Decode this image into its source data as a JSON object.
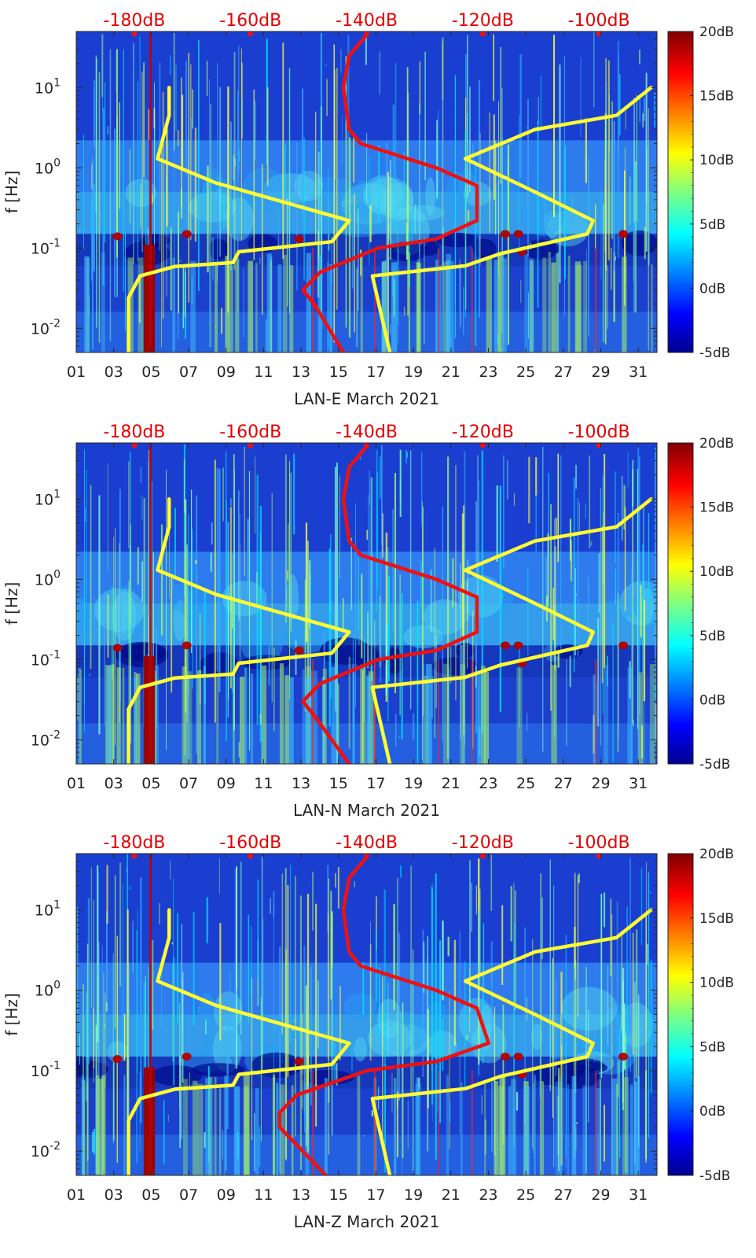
{
  "chart_data": [
    {
      "type": "heatmap",
      "title": "",
      "xlabel": "LAN-E March 2021",
      "ylabel": "f [Hz]",
      "x_ticks": [
        "01",
        "03",
        "05",
        "07",
        "09",
        "11",
        "13",
        "15",
        "17",
        "19",
        "21",
        "23",
        "25",
        "27",
        "29",
        "31"
      ],
      "x_range_days": [
        1,
        32
      ],
      "y_scale": "log",
      "y_range_hz": [
        0.005,
        50
      ],
      "y_ticks": [
        {
          "base": "10",
          "exp": "1"
        },
        {
          "base": "10",
          "exp": "0"
        },
        {
          "base": "10",
          "exp": "-1"
        },
        {
          "base": "10",
          "exp": "-2"
        }
      ],
      "top_axis_labels": [
        "-180dB",
        "-160dB",
        "-140dB",
        "-120dB",
        "-100dB"
      ],
      "colorbar_labels": [
        "20dB",
        "15dB",
        "10dB",
        "5dB",
        "0dB",
        "-5dB"
      ],
      "colorbar_range_db": [
        -5,
        20
      ],
      "overlay_curves": [
        {
          "name": "low noise model",
          "color": "#ffff33",
          "x_db": [
            -174,
            -174,
            -176,
            -166,
            -143,
            -146,
            -162,
            -163,
            -173,
            -179,
            -181,
            -181
          ],
          "f_hz": [
            10,
            4.5,
            1.3,
            0.65,
            0.22,
            0.12,
            0.09,
            0.066,
            0.059,
            0.045,
            0.024,
            0.005
          ]
        },
        {
          "name": "high noise model",
          "color": "#ffff33",
          "x_db": [
            -91,
            -97,
            -111,
            -123,
            -111,
            -101,
            -102,
            -117,
            -123,
            -139,
            -136
          ],
          "f_hz": [
            10,
            4.5,
            3,
            1.3,
            0.5,
            0.22,
            0.15,
            0.085,
            0.06,
            0.045,
            0.005
          ]
        },
        {
          "name": "PSD median",
          "color": "#ee1111",
          "x_db": [
            -140,
            -143,
            -144,
            -143,
            -141,
            -128,
            -121,
            -121,
            -128,
            -138,
            -148,
            -151,
            -149,
            -144
          ],
          "f_hz": [
            45,
            25,
            10,
            3,
            2,
            1,
            0.6,
            0.22,
            0.13,
            0.1,
            0.05,
            0.03,
            0.02,
            0.005
          ]
        }
      ]
    },
    {
      "type": "heatmap",
      "title": "",
      "xlabel": "LAN-N March 2021",
      "ylabel": "f [Hz]",
      "x_ticks": [
        "01",
        "03",
        "05",
        "07",
        "09",
        "11",
        "13",
        "15",
        "17",
        "19",
        "21",
        "23",
        "25",
        "27",
        "29",
        "31"
      ],
      "x_range_days": [
        1,
        32
      ],
      "y_scale": "log",
      "y_range_hz": [
        0.005,
        50
      ],
      "y_ticks": [
        {
          "base": "10",
          "exp": "1"
        },
        {
          "base": "10",
          "exp": "0"
        },
        {
          "base": "10",
          "exp": "-1"
        },
        {
          "base": "10",
          "exp": "-2"
        }
      ],
      "top_axis_labels": [
        "-180dB",
        "-160dB",
        "-140dB",
        "-120dB",
        "-100dB"
      ],
      "colorbar_labels": [
        "20dB",
        "15dB",
        "10dB",
        "5dB",
        "0dB",
        "-5dB"
      ],
      "colorbar_range_db": [
        -5,
        20
      ],
      "overlay_curves": [
        {
          "name": "low noise model",
          "color": "#ffff33",
          "x_db": [
            -174,
            -174,
            -176,
            -166,
            -143,
            -146,
            -162,
            -163,
            -173,
            -179,
            -181,
            -181
          ],
          "f_hz": [
            10,
            4.5,
            1.3,
            0.65,
            0.22,
            0.12,
            0.09,
            0.066,
            0.059,
            0.045,
            0.024,
            0.005
          ]
        },
        {
          "name": "high noise model",
          "color": "#ffff33",
          "x_db": [
            -91,
            -97,
            -111,
            -123,
            -111,
            -101,
            -102,
            -117,
            -123,
            -139,
            -136
          ],
          "f_hz": [
            10,
            4.5,
            3,
            1.3,
            0.5,
            0.22,
            0.15,
            0.085,
            0.06,
            0.045,
            0.005
          ]
        },
        {
          "name": "PSD median",
          "color": "#ee1111",
          "x_db": [
            -140,
            -143,
            -144,
            -143,
            -141,
            -128,
            -121,
            -121,
            -128,
            -138,
            -148,
            -151,
            -149,
            -143
          ],
          "f_hz": [
            45,
            25,
            10,
            3,
            2,
            1,
            0.6,
            0.22,
            0.13,
            0.1,
            0.05,
            0.03,
            0.02,
            0.005
          ]
        }
      ]
    },
    {
      "type": "heatmap",
      "title": "",
      "xlabel": "LAN-Z March 2021",
      "ylabel": "f [Hz]",
      "x_ticks": [
        "01",
        "03",
        "05",
        "07",
        "09",
        "11",
        "13",
        "15",
        "17",
        "19",
        "21",
        "23",
        "25",
        "27",
        "29",
        "31"
      ],
      "x_range_days": [
        1,
        32
      ],
      "y_scale": "log",
      "y_range_hz": [
        0.005,
        50
      ],
      "y_ticks": [
        {
          "base": "10",
          "exp": "1"
        },
        {
          "base": "10",
          "exp": "0"
        },
        {
          "base": "10",
          "exp": "-1"
        },
        {
          "base": "10",
          "exp": "-2"
        }
      ],
      "top_axis_labels": [
        "-180dB",
        "-160dB",
        "-140dB",
        "-120dB",
        "-100dB"
      ],
      "colorbar_labels": [
        "20dB",
        "15dB",
        "10dB",
        "5dB",
        "0dB",
        "-5dB"
      ],
      "colorbar_range_db": [
        -5,
        20
      ],
      "overlay_curves": [
        {
          "name": "low noise model",
          "color": "#ffff33",
          "x_db": [
            -174,
            -174,
            -176,
            -166,
            -143,
            -146,
            -162,
            -163,
            -173,
            -179,
            -181,
            -181
          ],
          "f_hz": [
            10,
            4.5,
            1.3,
            0.65,
            0.22,
            0.12,
            0.09,
            0.066,
            0.059,
            0.045,
            0.024,
            0.005
          ]
        },
        {
          "name": "high noise model",
          "color": "#ffff33",
          "x_db": [
            -91,
            -97,
            -111,
            -123,
            -111,
            -101,
            -102,
            -117,
            -123,
            -139,
            -136
          ],
          "f_hz": [
            10,
            4.5,
            3,
            1.3,
            0.5,
            0.22,
            0.15,
            0.085,
            0.06,
            0.045,
            0.005
          ]
        },
        {
          "name": "PSD median",
          "color": "#ee1111",
          "x_db": [
            -140,
            -143,
            -144,
            -143,
            -141,
            -128,
            -121,
            -119,
            -128,
            -140,
            -152,
            -155,
            -155,
            -147
          ],
          "f_hz": [
            45,
            25,
            10,
            3,
            2,
            1,
            0.6,
            0.22,
            0.13,
            0.1,
            0.05,
            0.03,
            0.02,
            0.005
          ]
        }
      ]
    }
  ]
}
